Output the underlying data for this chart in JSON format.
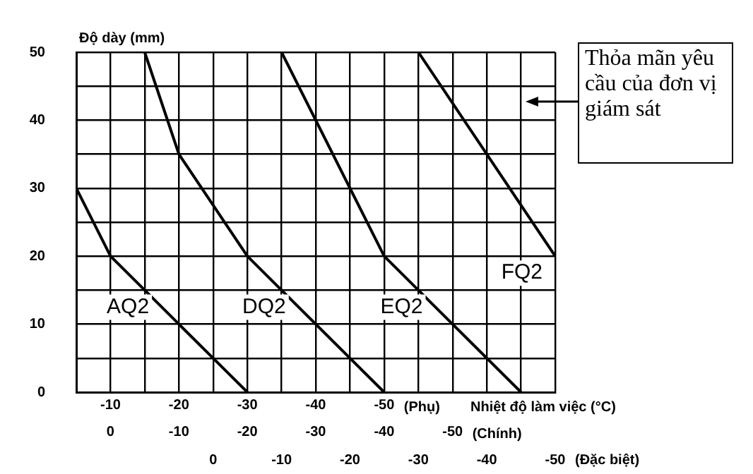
{
  "chart_data": {
    "type": "line",
    "ylabel": "Độ dày (mm)",
    "xlabel": "(Phụ)",
    "x2label": "(Chính)",
    "annotations": [
      "Nhiệt độ làm việc (°C)",
      "Thỏa mãn yêu cầu của đơn vị giám sát",
      "(Đặc biệt)",
      "0",
      "-10",
      "-20",
      "-30",
      "-40",
      "-50"
    ],
    "series": [
      {
        "name": "AQ2",
        "color": "#000000",
        "x": [
          -5,
          -10,
          -30
        ],
        "values": [
          30,
          20,
          0
        ]
      },
      {
        "name": "DQ2",
        "color": "#000000",
        "x": [
          -15,
          -20,
          -30,
          -50
        ],
        "values": [
          50,
          35,
          20,
          0
        ]
      },
      {
        "name": "EQ2",
        "color": "#000000",
        "x": [
          -35,
          -50,
          -70
        ],
        "values": [
          50,
          20,
          0
        ]
      },
      {
        "name": "FQ2",
        "color": "#000000",
        "x": [
          -55,
          -75
        ],
        "values": [
          50,
          20
        ]
      }
    ],
    "xlim": [
      -5,
      -75
    ],
    "xticks": [
      {
        "value": -5,
        "label": null
      },
      -10,
      {
        "value": -15,
        "label": null
      },
      -20,
      {
        "value": -25,
        "label": null
      },
      -30,
      {
        "value": -35,
        "label": null
      },
      -40,
      {
        "value": -45,
        "label": null
      },
      -50,
      {
        "value": -55,
        "label": null
      },
      {
        "value": -60,
        "label": null
      },
      {
        "value": -65,
        "label": null
      },
      {
        "value": -70,
        "label": null
      },
      {
        "value": -75,
        "label": null
      }
    ],
    "x2lim": [
      5,
      -65
    ],
    "x2ticks": [
      0,
      -10,
      -20,
      -30,
      -40,
      -50
    ],
    "ylim": [
      0,
      50
    ],
    "yticks": [
      0,
      {
        "value": 5,
        "label": null
      },
      10,
      {
        "value": 15,
        "label": null
      },
      20,
      {
        "value": 25,
        "label": null
      },
      30,
      {
        "value": 35,
        "label": null
      },
      40,
      {
        "value": 45,
        "label": null
      },
      50
    ],
    "grid": true,
    "marker": "none",
    "line_style": "solid"
  }
}
